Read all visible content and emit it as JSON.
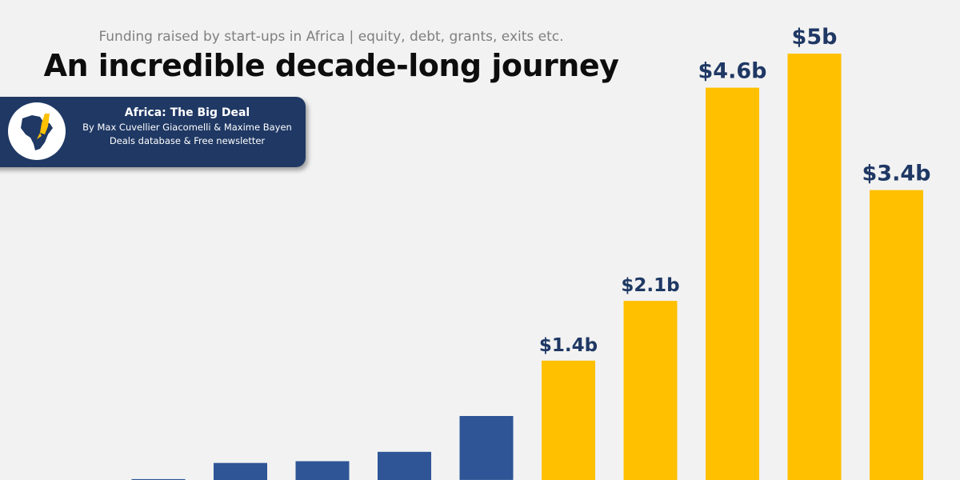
{
  "header": {
    "subtitle": "Funding raised by start-ups in Africa | equity, debt, grants, exits etc.",
    "title": "An incredible decade-long journey"
  },
  "badge": {
    "title": "Africa: The Big Deal",
    "authors": "By Max Cuvellier Giacomelli & Maxime Bayen",
    "tagline": "Deals database & Free newsletter",
    "logo_icon": "africa-rocket-icon"
  },
  "colors": {
    "background": "#f2f2f2",
    "blue_bar": "#2f5597",
    "yellow_bar": "#ffc000",
    "label": "#1f3864",
    "badge": "#1f3864"
  },
  "chart_data": {
    "type": "bar",
    "title": "An incredible decade-long journey",
    "subtitle": "Funding raised by start-ups in Africa | equity, debt, grants, exits etc.",
    "ylabel": "",
    "xlabel": "",
    "unit": "$b",
    "ylim": [
      0,
      5
    ],
    "values": [
      0.01,
      0.2,
      0.22,
      0.33,
      0.75,
      1.4,
      2.1,
      4.6,
      5.0,
      3.4
    ],
    "colors": [
      "blue",
      "blue",
      "blue",
      "blue",
      "blue",
      "yellow",
      "yellow",
      "yellow",
      "yellow",
      "yellow"
    ],
    "labels": [
      "",
      "",
      "",
      "",
      "",
      "$1.4b",
      "$2.1b",
      "$4.6b",
      "$5b",
      "$3.4b"
    ]
  }
}
